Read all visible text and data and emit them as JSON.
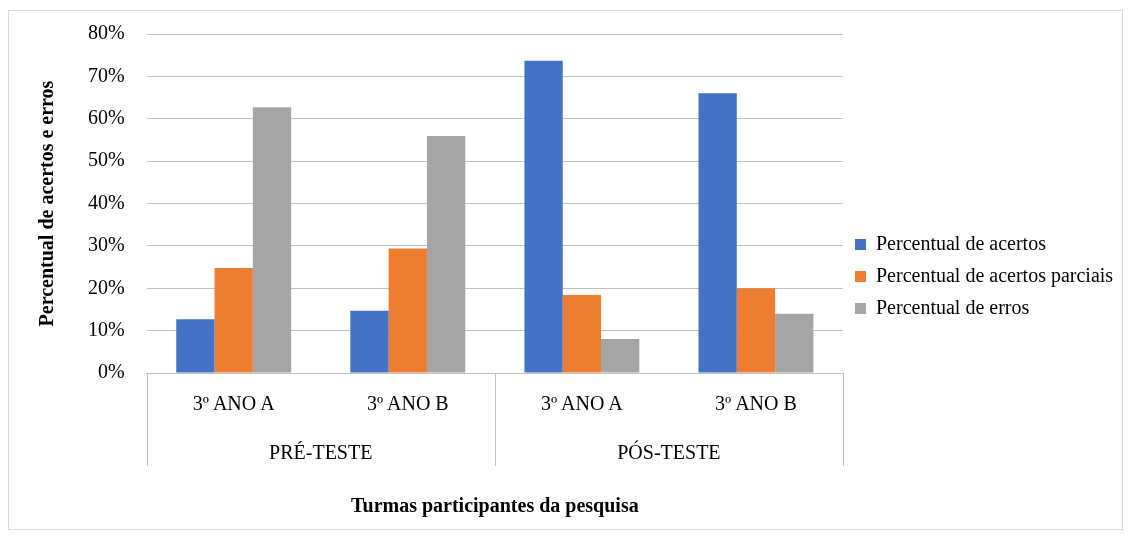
{
  "chart_data": {
    "type": "bar",
    "xlabel": "Turmas participantes da pesquisa",
    "ylabel": "Percentual de acertos e erros",
    "categories": [
      "3º ANO A",
      "3º ANO B",
      "3º ANO A",
      "3º ANO B"
    ],
    "series": [
      {
        "name": "Percentual de acertos",
        "color": "#4472c4",
        "values": [
          12.7,
          14.7,
          73.7,
          66.0
        ]
      },
      {
        "name": "Percentual de acertos parciais",
        "color": "#ed7d31",
        "values": [
          24.8,
          29.4,
          18.4,
          20.0
        ]
      },
      {
        "name": "Percentual de erros",
        "color": "#a5a5a5",
        "values": [
          62.7,
          55.9,
          8.0,
          14.0
        ]
      }
    ],
    "ylim": [
      0,
      80
    ],
    "yticks": [
      {
        "value": 0,
        "label": "0%"
      },
      {
        "value": 10,
        "label": "10%"
      },
      {
        "value": 20,
        "label": "20%"
      },
      {
        "value": 30,
        "label": "30%"
      },
      {
        "value": 40,
        "label": "40%"
      },
      {
        "value": 50,
        "label": "50%"
      },
      {
        "value": 60,
        "label": "60%"
      },
      {
        "value": 70,
        "label": "70%"
      },
      {
        "value": 80,
        "label": "80%"
      }
    ],
    "annotations": [
      "PRÉ-TESTE",
      "PÓS-TESTE"
    ],
    "grid": "y",
    "legend": "right"
  }
}
